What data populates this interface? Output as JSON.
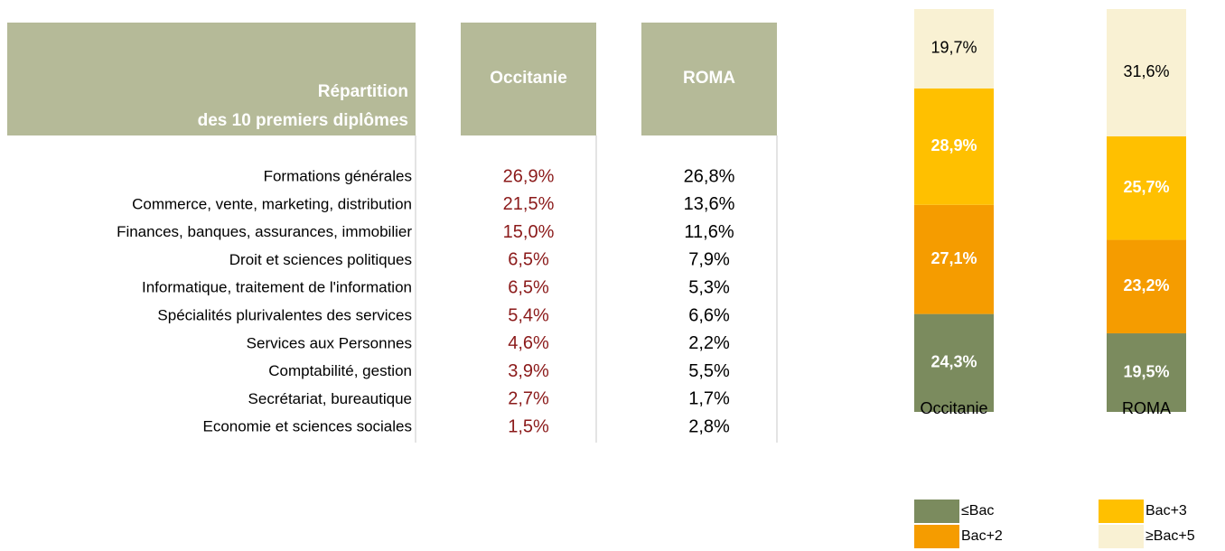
{
  "table": {
    "header": {
      "title": [
        "Répartition",
        "des 10 premiers diplômes"
      ],
      "columns": [
        "Occitanie",
        "ROMA"
      ]
    },
    "rows": [
      [
        "Formations générales",
        "26,9%",
        "26,8%"
      ],
      [
        "Commerce, vente, marketing, distribution",
        "21,5%",
        "13,6%"
      ],
      [
        "Finances, banques, assurances, immobilier",
        "15,0%",
        "11,6%"
      ],
      [
        "Droit et sciences politiques",
        "6,5%",
        "7,9%"
      ],
      [
        "Informatique, traitement de l'information",
        "6,5%",
        "5,3%"
      ],
      [
        "Spécialités plurivalentes des services",
        "5,4%",
        "6,6%"
      ],
      [
        "Services aux Personnes",
        "4,6%",
        "2,2%"
      ],
      [
        "Comptabilité, gestion",
        "3,9%",
        "5,5%"
      ],
      [
        "Secrétariat, bureautique",
        "2,7%",
        "1,7%"
      ],
      [
        "Economie et sciences sociales",
        "1,5%",
        "2,8%"
      ]
    ]
  },
  "chart_data": {
    "type": "bar",
    "stacked": true,
    "categories": [
      "Occitanie",
      "ROMA"
    ],
    "ylim": [
      0,
      100
    ],
    "series": [
      {
        "name": "≤Bac",
        "color": "#7b8b5e",
        "values": [
          24.3,
          19.5
        ],
        "value_labels": [
          "24,3%",
          "19,5%"
        ]
      },
      {
        "name": "Bac+2",
        "color": "#f59c00",
        "values": [
          27.1,
          23.2
        ],
        "value_labels": [
          "27,1%",
          "23,2%"
        ]
      },
      {
        "name": "Bac+3",
        "color": "#ffc000",
        "values": [
          28.9,
          25.7
        ],
        "value_labels": [
          "28,9%",
          "25,7%"
        ]
      },
      {
        "name": "≥Bac+5",
        "color": "#f9f1d3",
        "values": [
          19.7,
          31.6
        ],
        "value_labels": [
          "19,7%",
          "31,6%"
        ]
      }
    ]
  }
}
